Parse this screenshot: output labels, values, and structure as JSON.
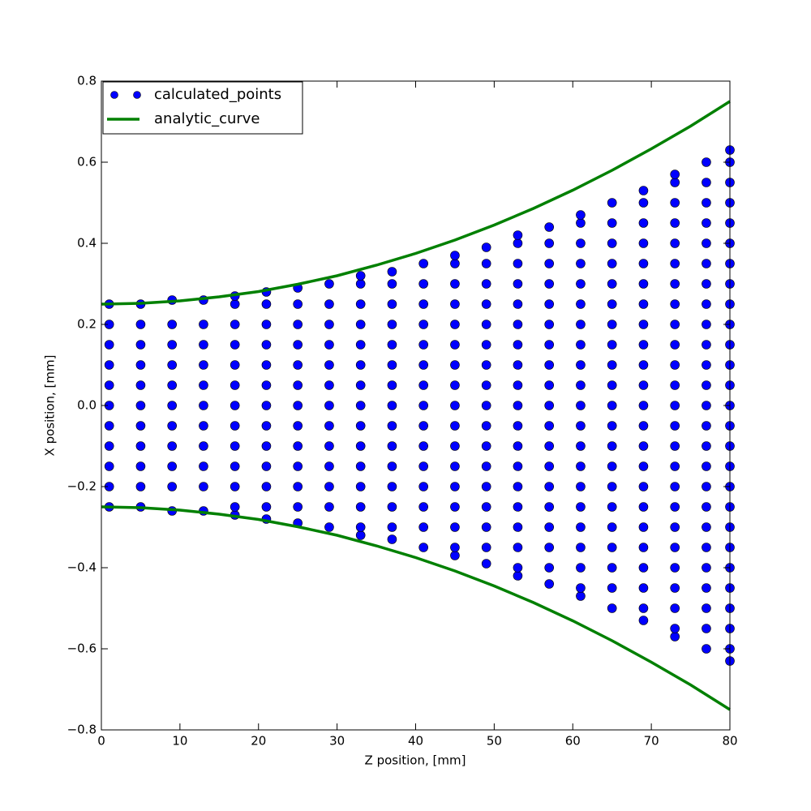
{
  "chart_data": {
    "type": "scatter",
    "xlabel": "Z position, [mm]",
    "ylabel": "X position, [mm]",
    "xlim": [
      0,
      80
    ],
    "ylim": [
      -0.8,
      0.8
    ],
    "xticks": [
      0,
      10,
      20,
      30,
      40,
      50,
      60,
      70,
      80
    ],
    "yticks": [
      {
        "value": -0.8,
        "label": "−0.8"
      },
      {
        "value": -0.6,
        "label": "−0.6"
      },
      {
        "value": -0.4,
        "label": "−0.4"
      },
      {
        "value": -0.2,
        "label": "−0.2"
      },
      {
        "value": 0,
        "label": "0.0"
      },
      0.2,
      0.4,
      0.6,
      0.8
    ],
    "legend": "upper left",
    "series": [
      {
        "name": "calculated_points",
        "kind": "marker",
        "color": "#0000ff",
        "x": [
          1,
          1,
          1,
          1,
          1,
          1,
          1,
          1,
          1,
          1,
          1,
          5,
          5,
          5,
          5,
          5,
          5,
          5,
          5,
          5,
          5,
          5,
          9,
          9,
          9,
          9,
          9,
          9,
          9,
          9,
          9,
          9,
          9,
          13,
          13,
          13,
          13,
          13,
          13,
          13,
          13,
          13,
          13,
          13,
          17,
          17,
          17,
          17,
          17,
          17,
          17,
          17,
          17,
          17,
          17,
          17,
          17,
          21,
          21,
          21,
          21,
          21,
          21,
          21,
          21,
          21,
          21,
          21,
          21,
          21,
          25,
          25,
          25,
          25,
          25,
          25,
          25,
          25,
          25,
          25,
          25,
          25,
          25,
          29,
          29,
          29,
          29,
          29,
          29,
          29,
          29,
          29,
          29,
          29,
          29,
          29,
          33,
          33,
          33,
          33,
          33,
          33,
          33,
          33,
          33,
          33,
          33,
          33,
          33,
          33,
          33,
          37,
          37,
          37,
          37,
          37,
          37,
          37,
          37,
          37,
          37,
          37,
          37,
          37,
          37,
          37,
          41,
          41,
          41,
          41,
          41,
          41,
          41,
          41,
          41,
          41,
          41,
          41,
          41,
          41,
          41,
          45,
          45,
          45,
          45,
          45,
          45,
          45,
          45,
          45,
          45,
          45,
          45,
          45,
          45,
          45,
          45,
          45,
          49,
          49,
          49,
          49,
          49,
          49,
          49,
          49,
          49,
          49,
          49,
          49,
          49,
          49,
          49,
          49,
          49,
          53,
          53,
          53,
          53,
          53,
          53,
          53,
          53,
          53,
          53,
          53,
          53,
          53,
          53,
          53,
          53,
          53,
          53,
          53,
          57,
          57,
          57,
          57,
          57,
          57,
          57,
          57,
          57,
          57,
          57,
          57,
          57,
          57,
          57,
          57,
          57,
          57,
          57,
          61,
          61,
          61,
          61,
          61,
          61,
          61,
          61,
          61,
          61,
          61,
          61,
          61,
          61,
          61,
          61,
          61,
          61,
          61,
          61,
          61,
          65,
          65,
          65,
          65,
          65,
          65,
          65,
          65,
          65,
          65,
          65,
          65,
          65,
          65,
          65,
          65,
          65,
          65,
          65,
          65,
          65,
          69,
          69,
          69,
          69,
          69,
          69,
          69,
          69,
          69,
          69,
          69,
          69,
          69,
          69,
          69,
          69,
          69,
          69,
          69,
          69,
          69,
          69,
          69,
          73,
          73,
          73,
          73,
          73,
          73,
          73,
          73,
          73,
          73,
          73,
          73,
          73,
          73,
          73,
          73,
          73,
          73,
          73,
          73,
          73,
          73,
          73,
          73,
          73,
          77,
          77,
          77,
          77,
          77,
          77,
          77,
          77,
          77,
          77,
          77,
          77,
          77,
          77,
          77,
          77,
          77,
          77,
          77,
          77,
          77,
          77,
          77,
          77,
          77,
          80,
          80,
          80,
          80,
          80,
          80,
          80,
          80,
          80,
          80,
          80,
          80,
          80,
          80,
          80,
          80,
          80,
          80,
          80,
          80,
          80,
          80,
          80,
          80,
          80,
          80,
          80
        ],
        "values": [
          -0.25,
          -0.2,
          -0.15,
          -0.1,
          -0.05,
          0,
          0.05,
          0.1,
          0.15,
          0.2,
          0.25,
          -0.25,
          -0.2,
          -0.15,
          -0.1,
          -0.05,
          0,
          0.05,
          0.1,
          0.15,
          0.2,
          0.25,
          -0.26,
          -0.2,
          -0.15,
          -0.1,
          -0.05,
          0,
          0.05,
          0.1,
          0.15,
          0.2,
          0.26,
          -0.26,
          -0.2,
          -0.15,
          -0.1,
          -0.05,
          0,
          0.05,
          0.1,
          0.15,
          0.2,
          0.26,
          -0.27,
          -0.25,
          -0.2,
          -0.15,
          -0.1,
          -0.05,
          0,
          0.05,
          0.1,
          0.15,
          0.2,
          0.25,
          0.27,
          -0.28,
          -0.25,
          -0.2,
          -0.15,
          -0.1,
          -0.05,
          0,
          0.05,
          0.1,
          0.15,
          0.2,
          0.25,
          0.28,
          -0.29,
          -0.25,
          -0.2,
          -0.15,
          -0.1,
          -0.05,
          0,
          0.05,
          0.1,
          0.15,
          0.2,
          0.25,
          0.29,
          -0.3,
          -0.25,
          -0.2,
          -0.15,
          -0.1,
          -0.05,
          0,
          0.05,
          0.1,
          0.15,
          0.2,
          0.25,
          0.3,
          -0.32,
          -0.3,
          -0.25,
          -0.2,
          -0.15,
          -0.1,
          -0.05,
          0,
          0.05,
          0.1,
          0.15,
          0.2,
          0.25,
          0.3,
          0.32,
          -0.33,
          -0.3,
          -0.25,
          -0.2,
          -0.15,
          -0.1,
          -0.05,
          0,
          0.05,
          0.1,
          0.15,
          0.2,
          0.25,
          0.3,
          0.33,
          -0.35,
          -0.3,
          -0.25,
          -0.2,
          -0.15,
          -0.1,
          -0.05,
          0,
          0.05,
          0.1,
          0.15,
          0.2,
          0.25,
          0.3,
          0.35,
          -0.37,
          -0.35,
          -0.3,
          -0.25,
          -0.2,
          -0.15,
          -0.1,
          -0.05,
          0,
          0.05,
          0.1,
          0.15,
          0.2,
          0.25,
          0.3,
          0.35,
          0.37,
          -0.39,
          -0.35,
          -0.3,
          -0.25,
          -0.2,
          -0.15,
          -0.1,
          -0.05,
          0,
          0.05,
          0.1,
          0.15,
          0.2,
          0.25,
          0.3,
          0.35,
          0.39,
          -0.42,
          -0.4,
          -0.35,
          -0.3,
          -0.25,
          -0.2,
          -0.15,
          -0.1,
          -0.05,
          0,
          0.05,
          0.1,
          0.15,
          0.2,
          0.25,
          0.3,
          0.35,
          0.4,
          0.42,
          -0.44,
          -0.4,
          -0.35,
          -0.3,
          -0.25,
          -0.2,
          -0.15,
          -0.1,
          -0.05,
          0,
          0.05,
          0.1,
          0.15,
          0.2,
          0.25,
          0.3,
          0.35,
          0.4,
          0.44,
          -0.47,
          -0.45,
          -0.4,
          -0.35,
          -0.3,
          -0.25,
          -0.2,
          -0.15,
          -0.1,
          -0.05,
          0,
          0.05,
          0.1,
          0.15,
          0.2,
          0.25,
          0.3,
          0.35,
          0.4,
          0.45,
          0.47,
          -0.5,
          -0.45,
          -0.4,
          -0.35,
          -0.3,
          -0.25,
          -0.2,
          -0.15,
          -0.1,
          -0.05,
          0,
          0.05,
          0.1,
          0.15,
          0.2,
          0.25,
          0.3,
          0.35,
          0.4,
          0.45,
          0.5,
          -0.53,
          -0.5,
          -0.45,
          -0.4,
          -0.35,
          -0.3,
          -0.25,
          -0.2,
          -0.15,
          -0.1,
          -0.05,
          0,
          0.05,
          0.1,
          0.15,
          0.2,
          0.25,
          0.3,
          0.35,
          0.4,
          0.45,
          0.5,
          0.53,
          -0.57,
          -0.55,
          -0.5,
          -0.45,
          -0.4,
          -0.35,
          -0.3,
          -0.25,
          -0.2,
          -0.15,
          -0.1,
          -0.05,
          0,
          0.05,
          0.1,
          0.15,
          0.2,
          0.25,
          0.3,
          0.35,
          0.4,
          0.45,
          0.5,
          0.55,
          0.57,
          -0.6,
          -0.55,
          -0.5,
          -0.45,
          -0.4,
          -0.35,
          -0.3,
          -0.25,
          -0.2,
          -0.15,
          -0.1,
          -0.05,
          0,
          0.05,
          0.1,
          0.15,
          0.2,
          0.25,
          0.3,
          0.35,
          0.4,
          0.45,
          0.5,
          0.55,
          0.6,
          -0.63,
          -0.6,
          -0.55,
          -0.5,
          -0.45,
          -0.4,
          -0.35,
          -0.3,
          -0.25,
          -0.2,
          -0.15,
          -0.1,
          -0.05,
          0,
          0.05,
          0.1,
          0.15,
          0.2,
          0.25,
          0.3,
          0.35,
          0.4,
          0.45,
          0.5,
          0.55,
          0.6,
          0.63
        ]
      },
      {
        "name": "analytic_curve",
        "kind": "line",
        "color": "#008000",
        "x": [
          0,
          5,
          10,
          15,
          20,
          25,
          30,
          35,
          40,
          45,
          50,
          55,
          60,
          65,
          70,
          75,
          80,
          null,
          0,
          5,
          10,
          15,
          20,
          25,
          30,
          35,
          40,
          45,
          50,
          55,
          60,
          65,
          70,
          75,
          80
        ],
        "values": [
          0.25,
          0.252,
          0.258,
          0.268,
          0.281,
          0.299,
          0.32,
          0.346,
          0.375,
          0.408,
          0.445,
          0.486,
          0.531,
          0.58,
          0.633,
          0.689,
          0.75,
          null,
          -0.25,
          -0.252,
          -0.258,
          -0.268,
          -0.281,
          -0.299,
          -0.32,
          -0.346,
          -0.375,
          -0.408,
          -0.445,
          -0.486,
          -0.531,
          -0.58,
          -0.633,
          -0.689,
          -0.75
        ]
      }
    ]
  }
}
